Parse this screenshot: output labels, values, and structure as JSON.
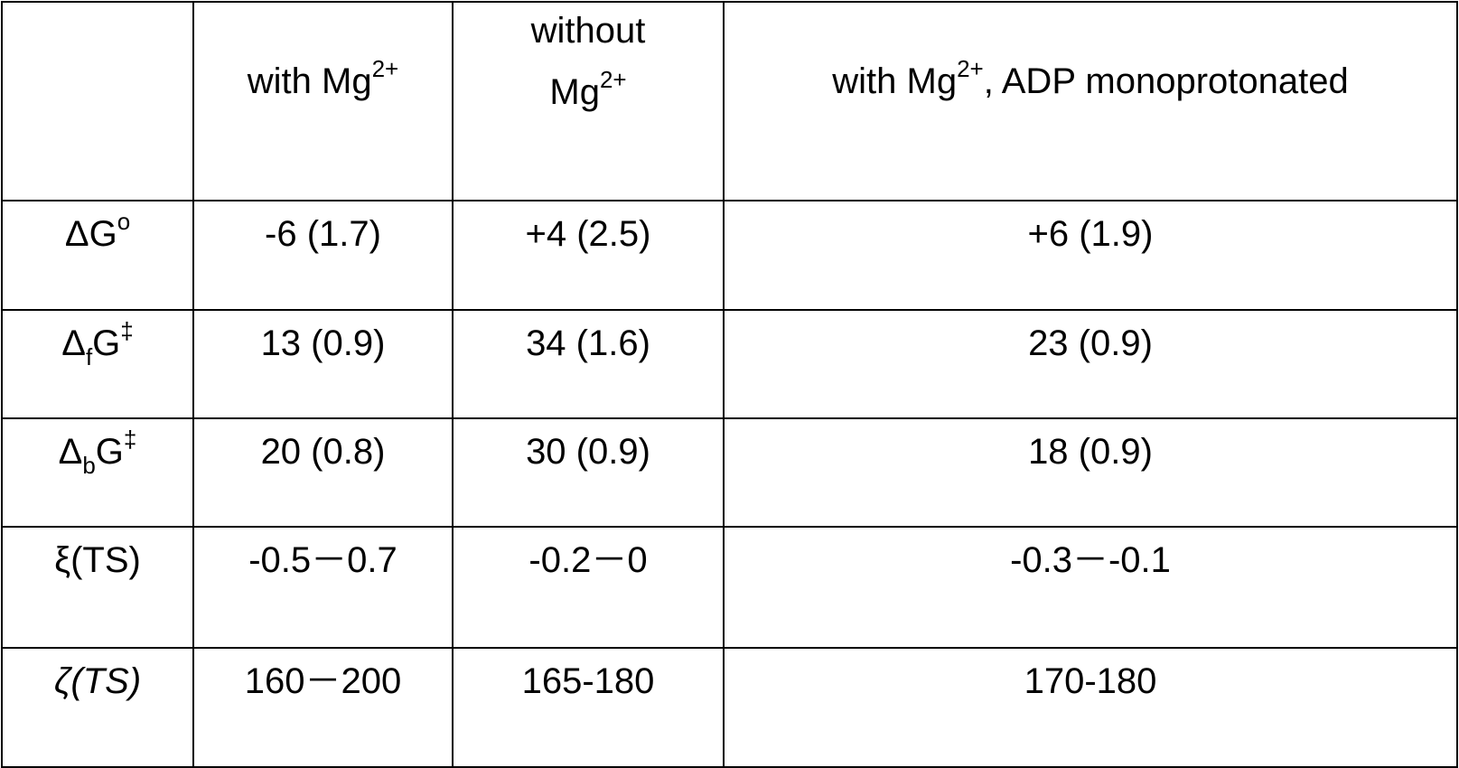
{
  "header": {
    "col0": "",
    "col1_base": "with Mg",
    "col1_sup": "2+",
    "col2_line1": "without",
    "col2_line2_base": "Mg",
    "col2_line2_sup": "2+",
    "col3_base": "with Mg",
    "col3_sup": "2+",
    "col3_rest": ", ADP monoprotonated"
  },
  "rows": {
    "dg": {
      "label_base": "ΔG",
      "label_sup": "o",
      "with_mg": "-6 (1.7)",
      "without_mg": "+4 (2.5)",
      "adp_mono": "+6 (1.9)"
    },
    "dfg": {
      "label_delta": "Δ",
      "label_sub": "f",
      "label_g": "G",
      "label_sup": "‡",
      "with_mg": "13 (0.9)",
      "without_mg": "34 (1.6)",
      "adp_mono": "23 (0.9)"
    },
    "dbg": {
      "label_delta": "Δ",
      "label_sub": "b",
      "label_g": "G",
      "label_sup": "‡",
      "with_mg": "20 (0.8)",
      "without_mg": "30 (0.9)",
      "adp_mono": "18 (0.9)"
    },
    "xi": {
      "label": "ξ(TS)",
      "with_mg": "-0.5－0.7",
      "without_mg": "-0.2－0",
      "adp_mono": "-0.3－-0.1"
    },
    "zeta": {
      "label": "ζ(TS)",
      "with_mg": "160－200",
      "without_mg": "165-180",
      "adp_mono": "170-180"
    }
  }
}
